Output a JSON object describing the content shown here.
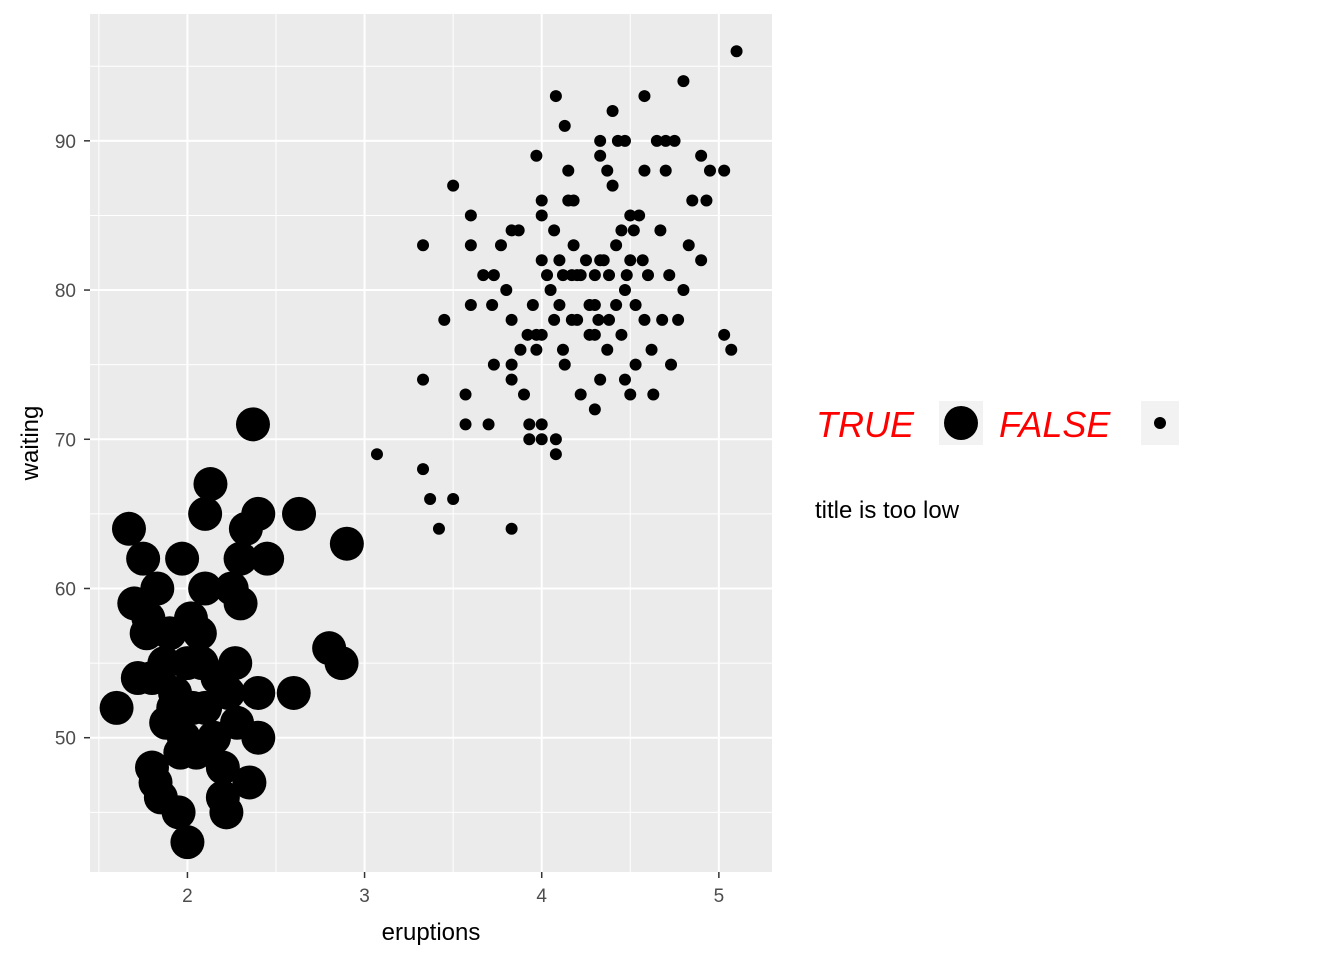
{
  "chart_data": {
    "type": "scatter",
    "title": "",
    "xlabel": "eruptions",
    "ylabel": "waiting",
    "xlim": [
      1.45,
      5.3
    ],
    "ylim": [
      41.0,
      98.5
    ],
    "x_ticks": [
      2,
      3,
      4,
      5
    ],
    "y_ticks": [
      50,
      60,
      70,
      80,
      90
    ],
    "grid": true,
    "panel_background": "#ebebeb",
    "grid_color": "#ffffff",
    "point_color": "#000000",
    "legend": {
      "position": "right",
      "title": "title is too low",
      "label_color": "#ff0000",
      "entries": [
        {
          "label": "TRUE",
          "size": "large"
        },
        {
          "label": "FALSE",
          "size": "small"
        }
      ]
    },
    "series": [
      {
        "name": "TRUE",
        "size": "large",
        "points": [
          [
            1.6,
            52
          ],
          [
            1.67,
            64
          ],
          [
            1.7,
            59
          ],
          [
            1.75,
            62
          ],
          [
            1.78,
            58
          ],
          [
            1.8,
            54
          ],
          [
            1.8,
            48
          ],
          [
            1.82,
            47
          ],
          [
            1.85,
            46
          ],
          [
            1.88,
            51
          ],
          [
            1.9,
            57
          ],
          [
            1.93,
            53
          ],
          [
            1.95,
            45
          ],
          [
            1.97,
            62
          ],
          [
            1.98,
            50
          ],
          [
            2.0,
            43
          ],
          [
            2.0,
            55
          ],
          [
            2.02,
            58
          ],
          [
            2.03,
            52
          ],
          [
            2.05,
            49
          ],
          [
            2.07,
            57
          ],
          [
            2.1,
            52
          ],
          [
            2.1,
            60
          ],
          [
            2.1,
            65
          ],
          [
            2.13,
            67
          ],
          [
            2.15,
            50
          ],
          [
            2.17,
            54
          ],
          [
            2.2,
            46
          ],
          [
            2.2,
            48
          ],
          [
            2.22,
            45
          ],
          [
            2.23,
            53
          ],
          [
            2.25,
            60
          ],
          [
            2.27,
            55
          ],
          [
            2.28,
            51
          ],
          [
            2.3,
            59
          ],
          [
            2.3,
            62
          ],
          [
            2.33,
            64
          ],
          [
            2.35,
            47
          ],
          [
            2.37,
            71
          ],
          [
            2.4,
            53
          ],
          [
            2.4,
            65
          ],
          [
            2.4,
            50
          ],
          [
            2.45,
            62
          ],
          [
            2.6,
            53
          ],
          [
            2.63,
            65
          ],
          [
            2.8,
            56
          ],
          [
            2.87,
            55
          ],
          [
            2.9,
            63
          ],
          [
            1.72,
            54
          ],
          [
            1.77,
            57
          ],
          [
            1.83,
            60
          ],
          [
            1.87,
            55
          ],
          [
            1.92,
            52
          ],
          [
            1.96,
            49
          ],
          [
            2.08,
            55
          ]
        ]
      },
      {
        "name": "FALSE",
        "size": "small",
        "points": [
          [
            3.07,
            69
          ],
          [
            3.33,
            83
          ],
          [
            3.33,
            74
          ],
          [
            3.33,
            68
          ],
          [
            3.37,
            66
          ],
          [
            3.42,
            64
          ],
          [
            3.45,
            78
          ],
          [
            3.5,
            87
          ],
          [
            3.5,
            66
          ],
          [
            3.57,
            73
          ],
          [
            3.57,
            71
          ],
          [
            3.6,
            85
          ],
          [
            3.6,
            83
          ],
          [
            3.6,
            79
          ],
          [
            3.67,
            81
          ],
          [
            3.7,
            71
          ],
          [
            3.72,
            79
          ],
          [
            3.73,
            81
          ],
          [
            3.73,
            75
          ],
          [
            3.77,
            83
          ],
          [
            3.8,
            80
          ],
          [
            3.83,
            84
          ],
          [
            3.83,
            78
          ],
          [
            3.83,
            75
          ],
          [
            3.83,
            74
          ],
          [
            3.83,
            64
          ],
          [
            3.87,
            84
          ],
          [
            3.88,
            76
          ],
          [
            3.9,
            73
          ],
          [
            3.92,
            77
          ],
          [
            3.93,
            71
          ],
          [
            3.93,
            70
          ],
          [
            3.95,
            79
          ],
          [
            3.97,
            89
          ],
          [
            3.97,
            77
          ],
          [
            3.97,
            76
          ],
          [
            4.0,
            86
          ],
          [
            4.0,
            85
          ],
          [
            4.0,
            82
          ],
          [
            4.0,
            77
          ],
          [
            4.0,
            71
          ],
          [
            4.0,
            70
          ],
          [
            4.03,
            81
          ],
          [
            4.05,
            80
          ],
          [
            4.07,
            84
          ],
          [
            4.07,
            78
          ],
          [
            4.08,
            93
          ],
          [
            4.08,
            70
          ],
          [
            4.08,
            69
          ],
          [
            4.1,
            82
          ],
          [
            4.1,
            79
          ],
          [
            4.12,
            81
          ],
          [
            4.12,
            76
          ],
          [
            4.13,
            91
          ],
          [
            4.13,
            75
          ],
          [
            4.15,
            88
          ],
          [
            4.15,
            86
          ],
          [
            4.17,
            81
          ],
          [
            4.17,
            78
          ],
          [
            4.18,
            86
          ],
          [
            4.18,
            83
          ],
          [
            4.2,
            81
          ],
          [
            4.2,
            78
          ],
          [
            4.22,
            81
          ],
          [
            4.22,
            73
          ],
          [
            4.25,
            82
          ],
          [
            4.27,
            79
          ],
          [
            4.27,
            77
          ],
          [
            4.3,
            81
          ],
          [
            4.3,
            79
          ],
          [
            4.3,
            77
          ],
          [
            4.3,
            72
          ],
          [
            4.32,
            78
          ],
          [
            4.33,
            90
          ],
          [
            4.33,
            89
          ],
          [
            4.33,
            82
          ],
          [
            4.33,
            74
          ],
          [
            4.35,
            82
          ],
          [
            4.37,
            88
          ],
          [
            4.37,
            76
          ],
          [
            4.38,
            81
          ],
          [
            4.38,
            78
          ],
          [
            4.4,
            92
          ],
          [
            4.4,
            87
          ],
          [
            4.42,
            83
          ],
          [
            4.42,
            79
          ],
          [
            4.43,
            90
          ],
          [
            4.45,
            84
          ],
          [
            4.45,
            77
          ],
          [
            4.47,
            90
          ],
          [
            4.47,
            80
          ],
          [
            4.47,
            74
          ],
          [
            4.48,
            81
          ],
          [
            4.5,
            85
          ],
          [
            4.5,
            82
          ],
          [
            4.5,
            73
          ],
          [
            4.52,
            84
          ],
          [
            4.53,
            79
          ],
          [
            4.53,
            75
          ],
          [
            4.55,
            85
          ],
          [
            4.57,
            82
          ],
          [
            4.58,
            93
          ],
          [
            4.58,
            88
          ],
          [
            4.58,
            78
          ],
          [
            4.6,
            81
          ],
          [
            4.62,
            76
          ],
          [
            4.63,
            73
          ],
          [
            4.65,
            90
          ],
          [
            4.67,
            84
          ],
          [
            4.68,
            78
          ],
          [
            4.7,
            90
          ],
          [
            4.7,
            88
          ],
          [
            4.72,
            81
          ],
          [
            4.73,
            75
          ],
          [
            4.75,
            90
          ],
          [
            4.77,
            78
          ],
          [
            4.8,
            94
          ],
          [
            4.8,
            80
          ],
          [
            4.83,
            83
          ],
          [
            4.85,
            86
          ],
          [
            4.9,
            89
          ],
          [
            4.9,
            82
          ],
          [
            4.93,
            86
          ],
          [
            4.95,
            88
          ],
          [
            5.03,
            88
          ],
          [
            5.03,
            77
          ],
          [
            5.07,
            76
          ],
          [
            5.1,
            96
          ]
        ]
      }
    ]
  }
}
